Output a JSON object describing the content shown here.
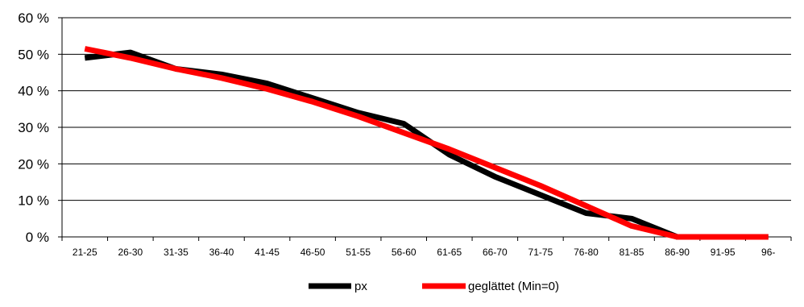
{
  "chart_data": {
    "type": "line",
    "categories": [
      "21-25",
      "26-30",
      "31-35",
      "36-40",
      "41-45",
      "46-50",
      "51-55",
      "56-60",
      "61-65",
      "66-70",
      "71-75",
      "76-80",
      "81-85",
      "86-90",
      "91-95",
      "96-"
    ],
    "series": [
      {
        "name": "px",
        "color": "#000000",
        "values": [
          49,
          50.5,
          46,
          44.5,
          42,
          38,
          34,
          31,
          22.5,
          16.5,
          11.5,
          6.5,
          5,
          0,
          0,
          0
        ]
      },
      {
        "name": "geglättet (Min=0)",
        "color": "#ff0000",
        "values": [
          51.5,
          49,
          46,
          43.5,
          40.5,
          37,
          33,
          28.5,
          24,
          19,
          14,
          8.5,
          3,
          0,
          0,
          0
        ]
      }
    ],
    "y_ticks": [
      "0 %",
      "10 %",
      "20 %",
      "30 %",
      "40 %",
      "50 %",
      "60 %"
    ],
    "ylim": [
      0,
      60
    ],
    "grid": "horizontal",
    "legend_position": "bottom"
  }
}
